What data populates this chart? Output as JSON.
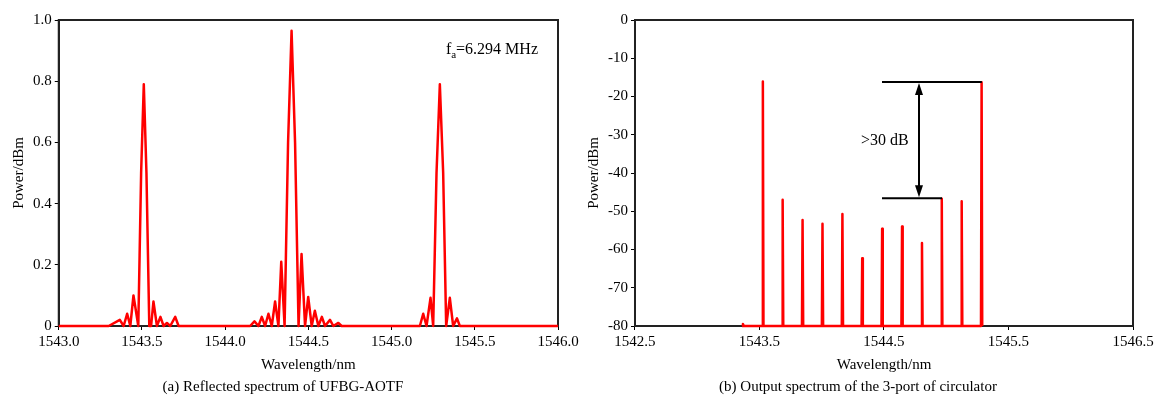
{
  "chart_data": [
    {
      "type": "line",
      "title": "(a) Reflected spectrum of UFBG-AOTF",
      "xlabel": "Wavelength/nm",
      "ylabel": "Power/dBm",
      "xlim": [
        1543.0,
        1546.0
      ],
      "xticks": [
        {
          "value": 1543,
          "label": "1543.0"
        },
        1543.5,
        {
          "value": 1544,
          "label": "1544.0"
        },
        1544.5,
        {
          "value": 1545,
          "label": "1545.0"
        },
        1545.5,
        {
          "value": 1546,
          "label": "1546.0"
        }
      ],
      "ylim": [
        0,
        1
      ],
      "yticks": [
        0,
        0.2,
        0.4,
        0.6,
        0.8,
        {
          "value": 1,
          "label": "1.0"
        }
      ],
      "grid": false,
      "marker": "none",
      "annotations": [
        "f$_{a}$=6.294 MHz"
      ],
      "series": [
        {
          "color": "#ff0000",
          "x": [
            1543.0,
            1543.1,
            1543.2,
            1543.3,
            1543.367,
            1543.39,
            1543.411,
            1543.43,
            1543.449,
            1543.478,
            1543.495,
            1543.511,
            1543.527,
            1543.544,
            1543.555,
            1543.569,
            1543.59,
            1543.611,
            1543.63,
            1543.65,
            1543.67,
            1543.7,
            1543.72,
            1543.85,
            1544.0,
            1544.15,
            1544.176,
            1544.2,
            1544.22,
            1544.24,
            1544.26,
            1544.28,
            1544.3,
            1544.32,
            1544.337,
            1544.357,
            1544.378,
            1544.399,
            1544.42,
            1544.441,
            1544.459,
            1544.48,
            1544.499,
            1544.52,
            1544.539,
            1544.56,
            1544.581,
            1544.6,
            1544.63,
            1544.65,
            1544.68,
            1544.7,
            1544.85,
            1545.0,
            1545.17,
            1545.19,
            1545.21,
            1545.234,
            1545.25,
            1545.27,
            1545.29,
            1545.31,
            1545.328,
            1545.35,
            1545.37,
            1545.393,
            1545.41,
            1545.6,
            1545.8,
            1546.0
          ],
          "values": [
            0,
            0,
            0,
            0,
            0.02,
            0,
            0.04,
            0,
            0.1,
            0,
            0.5,
            0.79,
            0.5,
            0,
            0,
            0.08,
            0,
            0.03,
            0,
            0.01,
            0,
            0.03,
            0,
            0,
            0,
            0,
            0.015,
            0,
            0.03,
            0,
            0.04,
            0,
            0.08,
            0,
            0.21,
            0,
            0.6,
            0.965,
            0.6,
            0,
            0.235,
            0,
            0.095,
            0,
            0.05,
            0,
            0.03,
            0,
            0.02,
            0,
            0.01,
            0,
            0,
            0,
            0,
            0.04,
            0,
            0.092,
            0,
            0.5,
            0.79,
            0.5,
            0,
            0.092,
            0,
            0.025,
            0,
            0,
            0,
            0
          ]
        }
      ]
    },
    {
      "type": "line",
      "title": "(b) Output spectrum of the 3-port of circulator",
      "xlabel": "Wavelength/nm",
      "ylabel": "Power/dBm",
      "xlim": [
        1542.5,
        1546.5
      ],
      "xticks": [
        1542.5,
        1543.5,
        1544.5,
        1545.5,
        1546.5
      ],
      "ylim": [
        -80,
        0
      ],
      "yticks": [
        -80,
        -70,
        -60,
        -50,
        -40,
        -30,
        -20,
        -10,
        0
      ],
      "grid": false,
      "marker": "none",
      "annotations": [
        ">30 dB"
      ],
      "series": [
        {
          "color": "#ff0000",
          "x": [
            1543.36,
            1543.367,
            1543.374,
            1543.522,
            1543.527,
            1543.532,
            1543.681,
            1543.686,
            1543.691,
            1543.841,
            1543.846,
            1543.851,
            1544.001,
            1544.006,
            1544.011,
            1544.161,
            1544.166,
            1544.171,
            1544.32,
            1544.325,
            1544.33,
            1544.48,
            1544.485,
            1544.49,
            1544.64,
            1544.645,
            1544.65,
            1544.8,
            1544.805,
            1544.81,
            1544.959,
            1544.964,
            1544.969,
            1545.119,
            1545.124,
            1545.129,
            1545.279,
            1545.284,
            1545.289
          ],
          "values": [
            -80,
            -79.5,
            -80,
            -80,
            -16.1,
            -80,
            -80,
            -47.0,
            -80,
            -80,
            -52.3,
            -80,
            -80,
            -53.3,
            -80,
            -80,
            -50.7,
            -80,
            -80,
            -62.3,
            -80,
            -80,
            -54.6,
            -80,
            -80,
            -54.0,
            -80,
            -80,
            -58.3,
            -80,
            -80,
            -46.7,
            -80,
            -80,
            -47.4,
            -80,
            -80,
            -16.3,
            -80
          ]
        }
      ]
    }
  ]
}
